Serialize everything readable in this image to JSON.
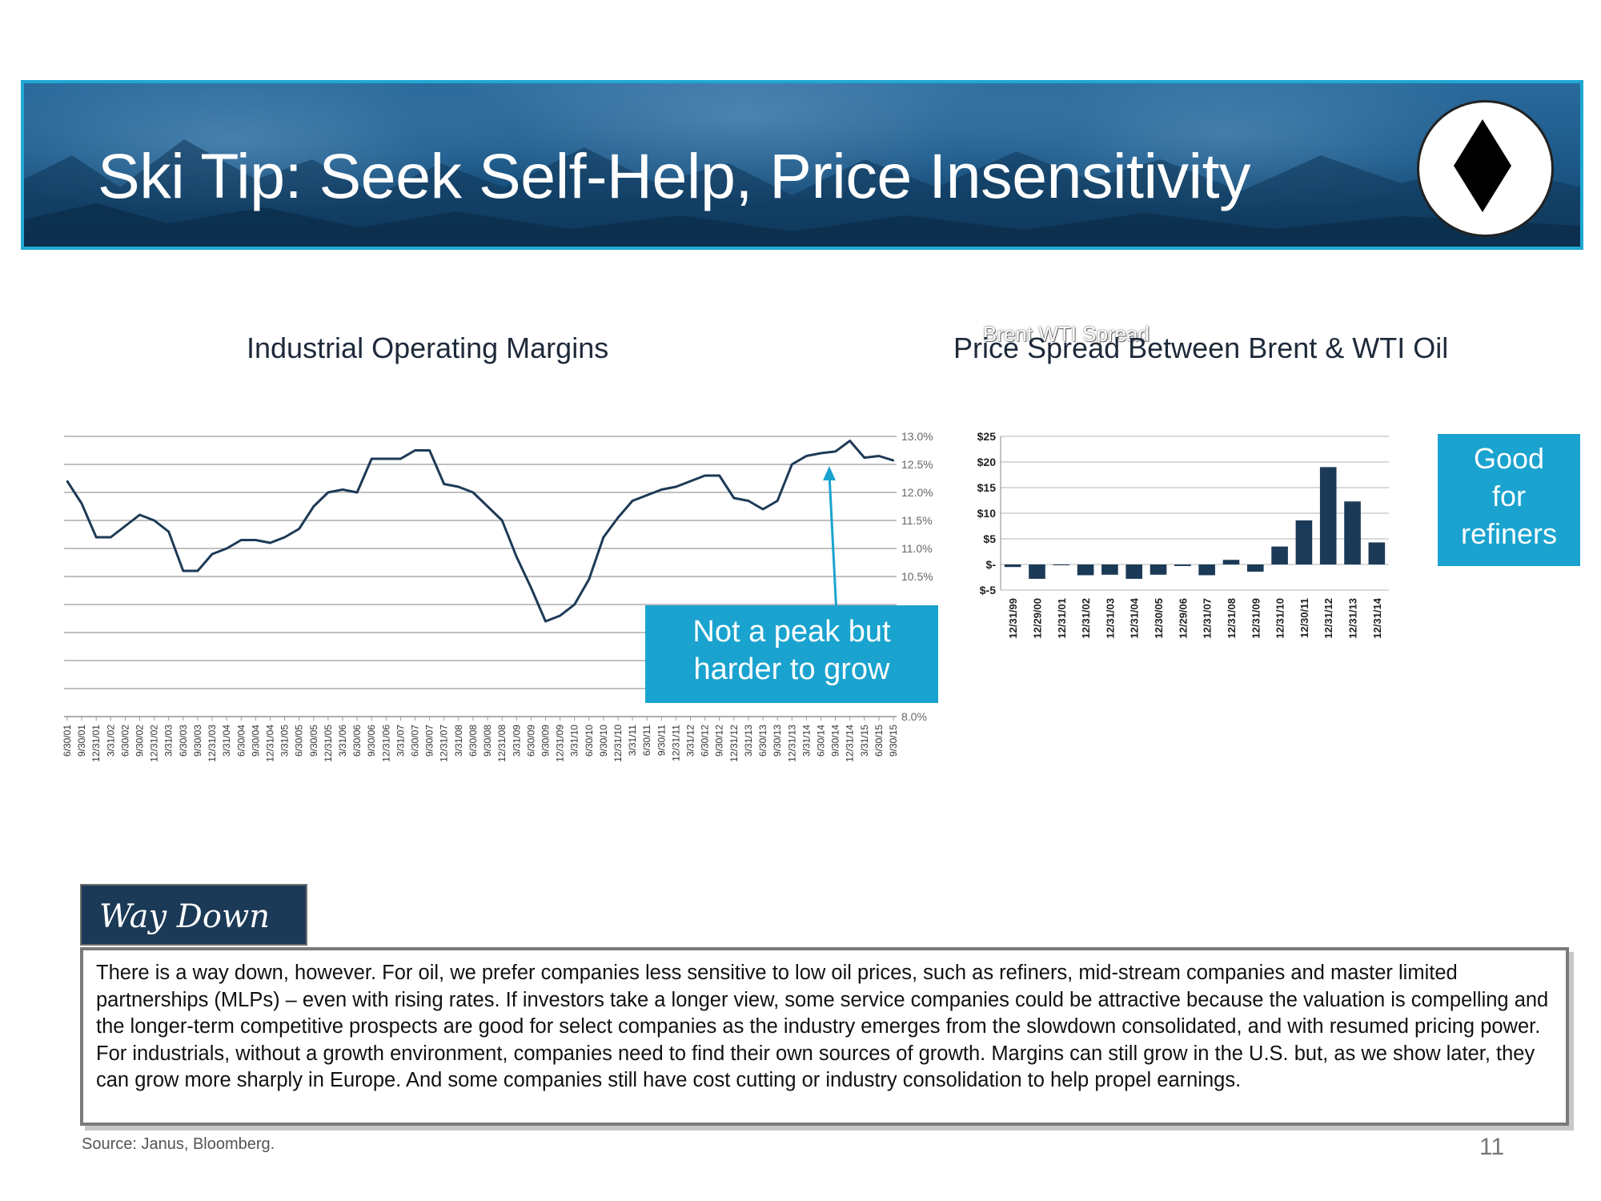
{
  "header": {
    "title": "Ski Tip: Seek Self-Help, Price Insensitivity",
    "badge_icon": "black-diamond-icon"
  },
  "colors": {
    "banner_border": "#1fa9d4",
    "callout": "#1aa3cf",
    "line": "#1d3a57",
    "bar": "#1b3a57"
  },
  "chart_data": [
    {
      "type": "line",
      "title": "Industrial Operating Margins",
      "ytick_labels": [
        "13.0%",
        "12.5%",
        "12.0%",
        "11.5%",
        "11.0%",
        "10.5%",
        "8.0%"
      ],
      "ylim": [
        8.0,
        13.0
      ],
      "grid": true,
      "axis_position": "right",
      "x": [
        "6/30/01",
        "9/30/01",
        "12/31/01",
        "3/31/02",
        "6/30/02",
        "9/30/02",
        "12/31/02",
        "3/31/03",
        "6/30/03",
        "9/30/03",
        "12/31/03",
        "3/31/04",
        "6/30/04",
        "9/30/04",
        "12/31/04",
        "3/31/05",
        "6/30/05",
        "9/30/05",
        "12/31/05",
        "3/31/06",
        "6/30/06",
        "9/30/06",
        "12/31/06",
        "3/31/07",
        "6/30/07",
        "9/30/07",
        "12/31/07",
        "3/31/08",
        "6/30/08",
        "9/30/08",
        "12/31/08",
        "3/31/09",
        "6/30/09",
        "9/30/09",
        "12/31/09",
        "3/31/10",
        "6/30/10",
        "9/30/10",
        "12/31/10",
        "3/31/11",
        "6/30/11",
        "9/30/11",
        "12/31/11",
        "3/31/12",
        "6/30/12",
        "9/30/12",
        "12/31/12",
        "3/31/13",
        "6/30/13",
        "9/30/13",
        "12/31/13",
        "3/31/14",
        "6/30/14",
        "9/30/14",
        "12/31/14",
        "3/31/15",
        "6/30/15",
        "9/30/15"
      ],
      "series": [
        {
          "values": [
            12.2,
            11.8,
            11.2,
            11.2,
            11.4,
            11.6,
            11.5,
            11.3,
            10.6,
            10.6,
            10.9,
            11.0,
            11.15,
            11.15,
            11.1,
            11.2,
            11.35,
            11.75,
            12.0,
            12.05,
            12.0,
            12.6,
            12.6,
            12.6,
            12.75,
            12.75,
            12.15,
            12.1,
            12.0,
            11.75,
            11.5,
            10.85,
            10.3,
            9.7,
            9.8,
            10.0,
            10.45,
            11.2,
            11.55,
            11.85,
            11.95,
            12.05,
            12.1,
            12.2,
            12.3,
            12.3,
            11.9,
            11.85,
            11.7,
            11.85,
            12.5,
            12.65,
            12.7,
            12.73,
            12.92,
            12.62,
            12.65,
            12.57
          ]
        }
      ]
    },
    {
      "type": "bar",
      "title": "Price Spread Between Brent & WTI Oil",
      "ghost_title": "Brent WTI Spread",
      "categories": [
        "12/31/99",
        "12/29/00",
        "12/31/01",
        "12/31/02",
        "12/31/03",
        "12/31/04",
        "12/30/05",
        "12/29/06",
        "12/31/07",
        "12/31/08",
        "12/31/09",
        "12/31/10",
        "12/30/11",
        "12/31/12",
        "12/31/13",
        "12/31/14"
      ],
      "values": [
        -0.5,
        -2.8,
        0,
        -2.1,
        -2.0,
        -2.8,
        -2.0,
        -0.3,
        -2.1,
        0.9,
        -1.4,
        3.5,
        8.6,
        19.0,
        12.3,
        4.3
      ],
      "ytick_labels": [
        "$25",
        "$20",
        "$15",
        "$10",
        "$5",
        "$-",
        "$-5"
      ],
      "ylim": [
        -5,
        25
      ],
      "grid": true
    }
  ],
  "callouts": {
    "line": [
      "Not a peak but",
      "harder to grow"
    ],
    "bar": [
      "Good",
      "for",
      "refiners"
    ]
  },
  "section": {
    "tab": "Way Down",
    "body": "There is a way down, however. For oil, we prefer companies less sensitive to low oil prices, such as refiners, mid-stream companies and master limited partnerships (MLPs) – even with rising rates. If investors take a longer view, some service companies could be attractive because the valuation is compelling and the longer-term competitive prospects are good for select companies as the industry emerges from the slowdown consolidated, and with resumed pricing power. For industrials, without a growth environment, companies need to find their own sources of growth. Margins can still grow in the U.S. but, as we show later, they can grow more sharply in Europe. And some companies still have cost cutting or industry consolidation to help propel earnings."
  },
  "footer": {
    "source": "Source: Janus, Bloomberg.",
    "page": "11"
  }
}
